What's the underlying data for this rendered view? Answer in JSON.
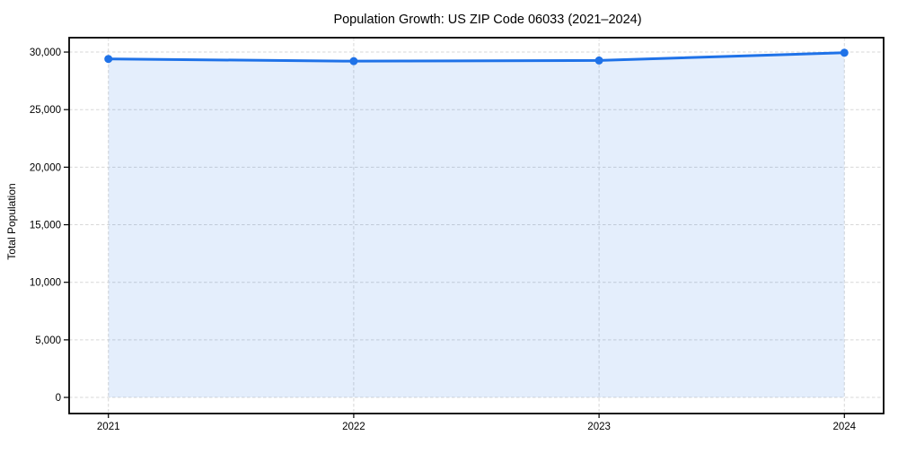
{
  "chart_data": {
    "type": "area",
    "title": "Population Growth: US ZIP Code 06033 (2021–2024)",
    "xlabel": "",
    "ylabel": "Total Population",
    "x": [
      2021,
      2022,
      2023,
      2024
    ],
    "x_tick_labels": [
      "2021",
      "2022",
      "2023",
      "2024"
    ],
    "series": [
      {
        "name": "Total Population",
        "values": [
          29400,
          29210,
          29270,
          29940
        ]
      }
    ],
    "y_ticks": [
      0,
      5000,
      10000,
      15000,
      20000,
      25000,
      30000
    ],
    "y_tick_labels": [
      "0",
      "5,000",
      "10,000",
      "15,000",
      "20,000",
      "25,000",
      "30,000"
    ],
    "xlim": [
      2020.84,
      2024.16
    ],
    "ylim": [
      -1400,
      31250
    ],
    "grid": true,
    "grid_style": "dashed",
    "legend": "none",
    "marker": "circle",
    "colors": {
      "line": "#1f72e8",
      "marker": "#1f72e8",
      "area_fill": "rgba(31,114,232,0.12)",
      "grid": "#d7d7d7",
      "spine": "#000000",
      "tick": "#000000",
      "text": "#000000",
      "background": "#ffffff"
    }
  }
}
